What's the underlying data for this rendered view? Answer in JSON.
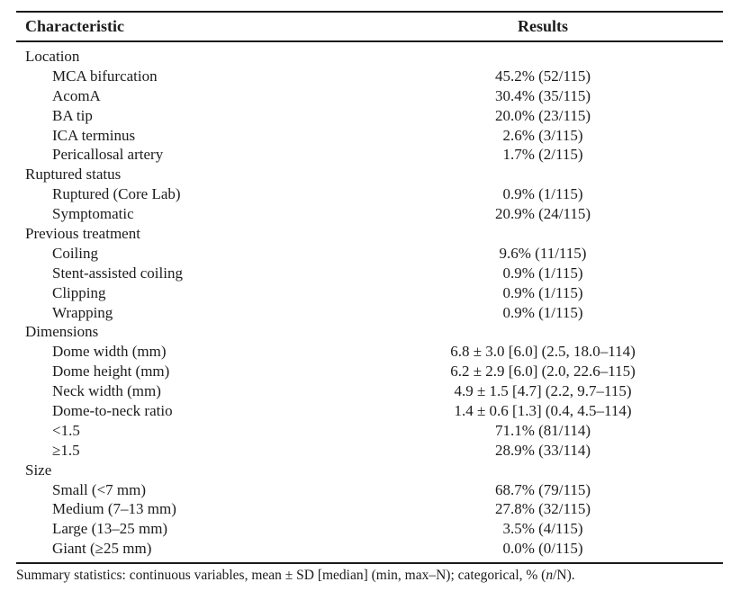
{
  "table": {
    "header": {
      "characteristic": "Characteristic",
      "results": "Results"
    },
    "rows": [
      {
        "label": "Location",
        "indent": 0,
        "value": ""
      },
      {
        "label": "MCA bifurcation",
        "indent": 1,
        "value": "45.2% (52/115)"
      },
      {
        "label": "AcomA",
        "indent": 1,
        "value": "30.4% (35/115)"
      },
      {
        "label": "BA tip",
        "indent": 1,
        "value": "20.0% (23/115)"
      },
      {
        "label": "ICA terminus",
        "indent": 1,
        "value": "2.6% (3/115)"
      },
      {
        "label": "Pericallosal artery",
        "indent": 1,
        "value": "1.7% (2/115)"
      },
      {
        "label": "Ruptured status",
        "indent": 0,
        "value": ""
      },
      {
        "label": "Ruptured (Core Lab)",
        "indent": 1,
        "value": "0.9% (1/115)"
      },
      {
        "label": "Symptomatic",
        "indent": 1,
        "value": "20.9% (24/115)"
      },
      {
        "label": "Previous treatment",
        "indent": 0,
        "value": ""
      },
      {
        "label": "Coiling",
        "indent": 1,
        "value": "9.6% (11/115)"
      },
      {
        "label": "Stent-assisted coiling",
        "indent": 1,
        "value": "0.9% (1/115)"
      },
      {
        "label": "Clipping",
        "indent": 1,
        "value": "0.9% (1/115)"
      },
      {
        "label": "Wrapping",
        "indent": 1,
        "value": "0.9% (1/115)"
      },
      {
        "label": "Dimensions",
        "indent": 0,
        "value": ""
      },
      {
        "label": "Dome width (mm)",
        "indent": 1,
        "value": "6.8 ± 3.0 [6.0] (2.5, 18.0–114)"
      },
      {
        "label": "Dome height (mm)",
        "indent": 1,
        "value": "6.2 ± 2.9 [6.0] (2.0, 22.6–115)"
      },
      {
        "label": "Neck width (mm)",
        "indent": 1,
        "value": "4.9 ± 1.5 [4.7] (2.2, 9.7–115)"
      },
      {
        "label": "Dome-to-neck ratio",
        "indent": 1,
        "value": "1.4 ± 0.6 [1.3] (0.4, 4.5–114)"
      },
      {
        "label": "<1.5",
        "indent": 1,
        "value": "71.1% (81/114)"
      },
      {
        "label": "≥1.5",
        "indent": 1,
        "value": "28.9% (33/114)"
      },
      {
        "label": "Size",
        "indent": 0,
        "value": ""
      },
      {
        "label": "Small (<7 mm)",
        "indent": 1,
        "value": "68.7% (79/115)"
      },
      {
        "label": "Medium (7–13 mm)",
        "indent": 1,
        "value": "27.8% (32/115)"
      },
      {
        "label": "Large (13–25 mm)",
        "indent": 1,
        "value": "3.5% (4/115)"
      },
      {
        "label": "Giant (≥25 mm)",
        "indent": 1,
        "value": "0.0% (0/115)"
      }
    ],
    "footnote_parts": [
      "Summary statistics: continuous variables, mean ± SD [median] (min, max–N); categorical, % (",
      "n",
      "/N)."
    ]
  }
}
